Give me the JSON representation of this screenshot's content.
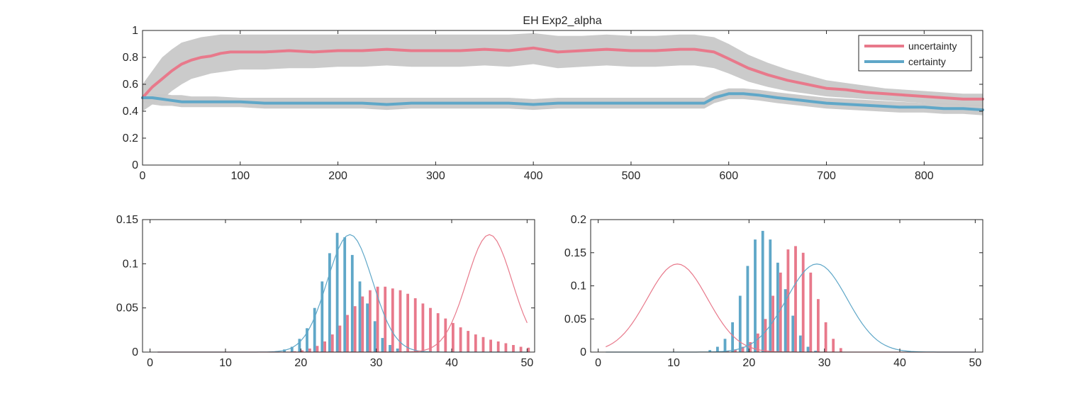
{
  "figure": {
    "title": "EH  Exp2_alpha",
    "colors": {
      "uncertainty": "#e8798b",
      "certainty": "#5fa7c8",
      "band": "#c8c8c8",
      "axis": "#262626"
    }
  },
  "chart_data": [
    {
      "id": "top",
      "type": "line",
      "title": "EH  Exp2_alpha",
      "xlim": [
        0,
        860
      ],
      "ylim": [
        0,
        1
      ],
      "xticks": [
        0,
        100,
        200,
        300,
        400,
        500,
        600,
        700,
        800
      ],
      "yticks": [
        0,
        0.2,
        0.4,
        0.6,
        0.8,
        1
      ],
      "ytick_labels": [
        "0",
        "0.2",
        "0.4",
        "0.6",
        "0.8",
        "1"
      ],
      "legend": {
        "placement": "top-right",
        "entries": [
          "uncertainty",
          "certainty"
        ]
      },
      "series": [
        {
          "name": "uncertainty",
          "color": "#e8798b",
          "x": [
            0,
            10,
            20,
            30,
            40,
            50,
            60,
            70,
            80,
            90,
            100,
            125,
            150,
            175,
            200,
            225,
            250,
            275,
            300,
            325,
            350,
            375,
            400,
            425,
            450,
            475,
            500,
            525,
            550,
            565,
            575,
            585,
            600,
            620,
            640,
            660,
            680,
            700,
            720,
            740,
            760,
            780,
            800,
            820,
            840,
            860
          ],
          "y": [
            0.5,
            0.58,
            0.64,
            0.7,
            0.75,
            0.78,
            0.8,
            0.81,
            0.83,
            0.84,
            0.84,
            0.84,
            0.85,
            0.84,
            0.85,
            0.85,
            0.86,
            0.85,
            0.85,
            0.85,
            0.86,
            0.85,
            0.87,
            0.84,
            0.85,
            0.86,
            0.85,
            0.85,
            0.86,
            0.86,
            0.85,
            0.84,
            0.79,
            0.72,
            0.67,
            0.63,
            0.6,
            0.57,
            0.56,
            0.54,
            0.53,
            0.52,
            0.51,
            0.5,
            0.49,
            0.49
          ],
          "band_upper": [
            0.6,
            0.7,
            0.8,
            0.86,
            0.91,
            0.93,
            0.95,
            0.96,
            0.97,
            0.97,
            0.97,
            0.97,
            0.97,
            0.97,
            0.97,
            0.97,
            0.97,
            0.97,
            0.97,
            0.97,
            0.97,
            0.97,
            0.98,
            0.96,
            0.96,
            0.97,
            0.96,
            0.96,
            0.97,
            0.97,
            0.96,
            0.95,
            0.9,
            0.82,
            0.76,
            0.71,
            0.67,
            0.63,
            0.61,
            0.59,
            0.57,
            0.56,
            0.55,
            0.54,
            0.53,
            0.53
          ],
          "band_lower": [
            0.4,
            0.45,
            0.49,
            0.55,
            0.6,
            0.64,
            0.66,
            0.68,
            0.69,
            0.7,
            0.71,
            0.71,
            0.72,
            0.72,
            0.73,
            0.73,
            0.74,
            0.73,
            0.73,
            0.73,
            0.74,
            0.73,
            0.75,
            0.72,
            0.73,
            0.74,
            0.73,
            0.73,
            0.74,
            0.74,
            0.73,
            0.72,
            0.68,
            0.62,
            0.58,
            0.55,
            0.53,
            0.51,
            0.5,
            0.49,
            0.48,
            0.47,
            0.46,
            0.45,
            0.44,
            0.44
          ]
        },
        {
          "name": "certainty",
          "color": "#5fa7c8",
          "x": [
            0,
            10,
            20,
            30,
            40,
            50,
            75,
            100,
            125,
            150,
            175,
            200,
            225,
            250,
            275,
            300,
            325,
            350,
            375,
            400,
            425,
            450,
            475,
            500,
            525,
            550,
            575,
            585,
            600,
            615,
            630,
            650,
            675,
            700,
            725,
            750,
            775,
            800,
            820,
            840,
            860
          ],
          "y": [
            0.5,
            0.5,
            0.49,
            0.48,
            0.47,
            0.47,
            0.47,
            0.47,
            0.46,
            0.46,
            0.46,
            0.46,
            0.46,
            0.45,
            0.46,
            0.46,
            0.46,
            0.46,
            0.46,
            0.45,
            0.46,
            0.46,
            0.46,
            0.46,
            0.46,
            0.46,
            0.46,
            0.5,
            0.53,
            0.53,
            0.52,
            0.5,
            0.48,
            0.46,
            0.45,
            0.44,
            0.43,
            0.43,
            0.42,
            0.42,
            0.41
          ],
          "band_upper": [
            0.53,
            0.53,
            0.53,
            0.52,
            0.52,
            0.51,
            0.51,
            0.5,
            0.5,
            0.5,
            0.5,
            0.5,
            0.5,
            0.5,
            0.5,
            0.5,
            0.5,
            0.5,
            0.5,
            0.49,
            0.5,
            0.5,
            0.5,
            0.5,
            0.5,
            0.5,
            0.5,
            0.54,
            0.57,
            0.57,
            0.56,
            0.54,
            0.52,
            0.5,
            0.49,
            0.48,
            0.47,
            0.46,
            0.46,
            0.45,
            0.45
          ],
          "band_lower": [
            0.47,
            0.45,
            0.44,
            0.44,
            0.43,
            0.43,
            0.43,
            0.43,
            0.42,
            0.42,
            0.42,
            0.42,
            0.42,
            0.41,
            0.42,
            0.42,
            0.42,
            0.42,
            0.42,
            0.41,
            0.42,
            0.42,
            0.42,
            0.42,
            0.42,
            0.42,
            0.42,
            0.46,
            0.49,
            0.49,
            0.48,
            0.46,
            0.44,
            0.42,
            0.41,
            0.4,
            0.39,
            0.39,
            0.38,
            0.38,
            0.37
          ]
        }
      ]
    },
    {
      "id": "bottom-left",
      "type": "bar",
      "xlim": [
        -1,
        51
      ],
      "ylim": [
        0,
        0.15
      ],
      "xticks": [
        0,
        10,
        20,
        30,
        40,
        50
      ],
      "yticks": [
        0,
        0.05,
        0.1,
        0.15
      ],
      "ytick_labels": [
        "0",
        "0.05",
        "0.1",
        "0.15"
      ],
      "bins": [
        18,
        19,
        20,
        21,
        22,
        23,
        24,
        25,
        26,
        27,
        28,
        29,
        30,
        31,
        32,
        33,
        34,
        35,
        36,
        37,
        38,
        39,
        40,
        41,
        42,
        43,
        44,
        45,
        46,
        47,
        48,
        49,
        50
      ],
      "series": [
        {
          "name": "certainty",
          "color": "#5fa7c8",
          "values": [
            0.003,
            0.006,
            0.015,
            0.027,
            0.05,
            0.08,
            0.112,
            0.135,
            0.13,
            0.11,
            0.08,
            0.055,
            0.035,
            0.016,
            0.008,
            0.004,
            0.001,
            0,
            0,
            0,
            0,
            0,
            0,
            0,
            0,
            0,
            0,
            0,
            0,
            0,
            0,
            0,
            0
          ]
        },
        {
          "name": "uncertainty",
          "color": "#e8798b",
          "values": [
            0,
            0.001,
            0.002,
            0.004,
            0.007,
            0.012,
            0.02,
            0.03,
            0.042,
            0.052,
            0.063,
            0.07,
            0.074,
            0.074,
            0.072,
            0.07,
            0.066,
            0.061,
            0.055,
            0.05,
            0.044,
            0.038,
            0.033,
            0.028,
            0.024,
            0.02,
            0.017,
            0.014,
            0.012,
            0.01,
            0.008,
            0.006,
            0.005
          ]
        }
      ],
      "curves": [
        {
          "name": "certainty",
          "color": "#5fa7c8",
          "mu": 26.5,
          "sigma": 3,
          "peak": 0.133
        },
        {
          "name": "uncertainty",
          "color": "#e8798b",
          "mu": 45,
          "sigma": 3,
          "peak": 0.133
        }
      ]
    },
    {
      "id": "bottom-right",
      "type": "bar",
      "xlim": [
        -1,
        51
      ],
      "ylim": [
        0,
        0.2
      ],
      "xticks": [
        0,
        10,
        20,
        30,
        40,
        50
      ],
      "yticks": [
        0,
        0.05,
        0.1,
        0.15,
        0.2
      ],
      "ytick_labels": [
        "0",
        "0.05",
        "0.1",
        "0.15",
        "0.2"
      ],
      "bins": [
        15,
        16,
        17,
        18,
        19,
        20,
        21,
        22,
        23,
        24,
        25,
        26,
        27,
        28,
        29,
        30,
        31,
        32
      ],
      "series": [
        {
          "name": "certainty",
          "color": "#5fa7c8",
          "values": [
            0.003,
            0.008,
            0.02,
            0.045,
            0.085,
            0.13,
            0.17,
            0.183,
            0.17,
            0.135,
            0.095,
            0.055,
            0.025,
            0.008,
            0.002,
            0,
            0,
            0
          ]
        },
        {
          "name": "uncertainty",
          "color": "#e8798b",
          "values": [
            0,
            0.001,
            0.002,
            0.004,
            0.008,
            0.015,
            0.028,
            0.05,
            0.085,
            0.12,
            0.155,
            0.16,
            0.15,
            0.12,
            0.08,
            0.045,
            0.02,
            0.006
          ]
        }
      ],
      "curves": [
        {
          "name": "uncertainty",
          "color": "#e8798b",
          "mu": 10.5,
          "sigma": 4,
          "peak": 0.133
        },
        {
          "name": "certainty",
          "color": "#5fa7c8",
          "mu": 29,
          "sigma": 4,
          "peak": 0.133
        }
      ]
    }
  ]
}
